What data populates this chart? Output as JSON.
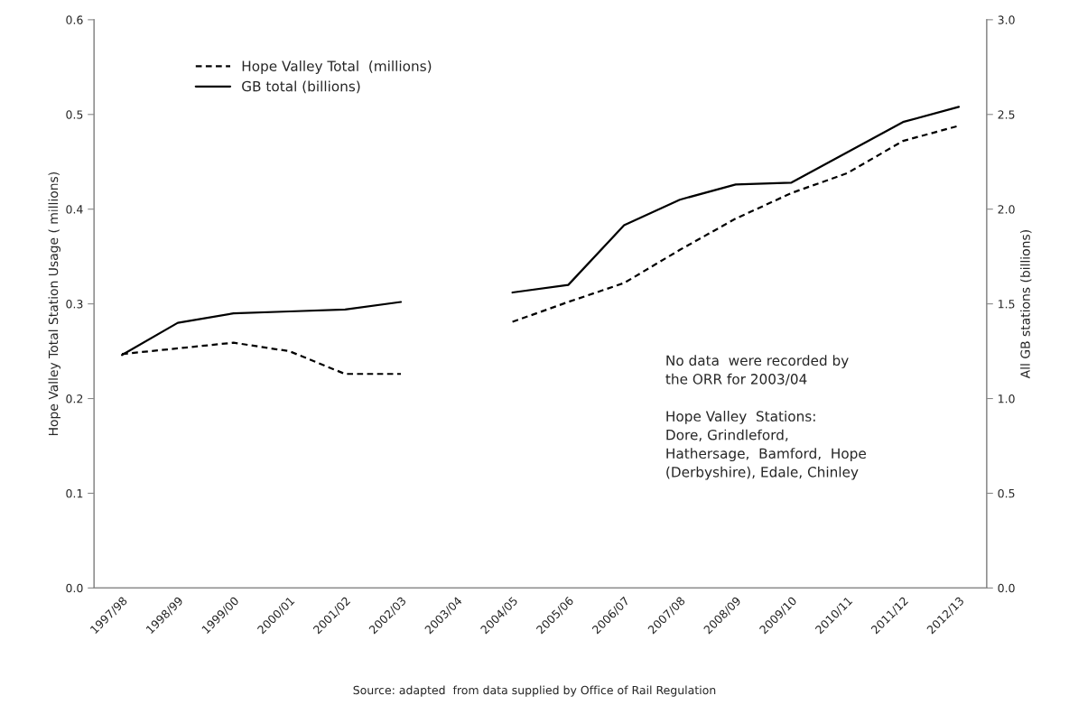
{
  "chart_data": {
    "type": "line",
    "categories": [
      "1997/98",
      "1998/99",
      "1999/00",
      "2000/01",
      "2001/02",
      "2002/03",
      "2003/04",
      "2004/05",
      "2005/06",
      "2006/07",
      "2007/08",
      "2008/09",
      "2009/10",
      "2010/11",
      "2011/12",
      "2012/13"
    ],
    "series": [
      {
        "name": "Hope Valley Total  (millions)",
        "color": "#000000",
        "line_style": "dashed",
        "values": [
          0.247,
          0.253,
          0.259,
          0.25,
          0.226,
          0.226,
          null,
          0.281,
          0.302,
          0.322,
          0.357,
          0.39,
          0.417,
          0.438,
          0.472,
          0.488
        ]
      },
      {
        "name": "GB total (billions)",
        "color": "#000000",
        "line_style": "solid",
        "axis": "y2",
        "values": [
          1.23,
          1.4,
          1.45,
          1.46,
          1.47,
          1.51,
          null,
          1.56,
          1.6,
          1.915,
          2.05,
          2.13,
          2.14,
          2.3,
          2.46,
          2.54
        ]
      }
    ],
    "ylabel": "Hope Valley Total Station Usage ( millions)",
    "y2label": "All GB stations (billions)",
    "ylim": [
      0,
      0.6
    ],
    "yticks": [
      {
        "value": 0,
        "label": "0.0"
      },
      0.1,
      0.2,
      0.3,
      0.4,
      0.5,
      0.6
    ],
    "y2lim": [
      0,
      3.0
    ],
    "y2ticks": [
      {
        "value": 0,
        "label": "0.0"
      },
      0.5,
      {
        "value": 1,
        "label": "1.0"
      },
      1.5,
      {
        "value": 2,
        "label": "2.0"
      },
      2.5,
      {
        "value": 3,
        "label": "3.0"
      }
    ],
    "annotations": [
      "No data  were recorded by\nthe ORR for 2003/04\n\nHope Valley  Stations:\nDore, Grindleford,\nHathersage,  Bamford,  Hope\n(Derbyshire), Edale, Chinley",
      "Source: adapted  from data supplied by Office of Rail Regulation"
    ],
    "legend": "top left",
    "grid": false,
    "marker": "none"
  }
}
